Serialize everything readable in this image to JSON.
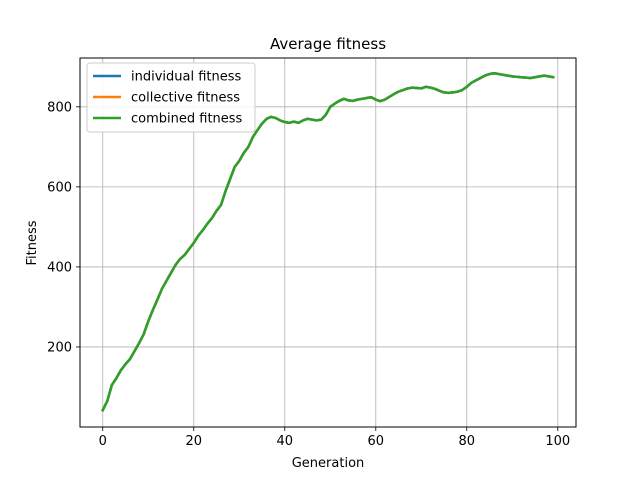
{
  "chart_data": {
    "type": "line",
    "title": "Average fitness",
    "xlabel": "Generation",
    "ylabel": "Fitness",
    "xlim": [
      -5,
      104
    ],
    "ylim": [
      0,
      922
    ],
    "xticks": [
      0,
      20,
      40,
      60,
      80,
      100
    ],
    "yticks": [
      200,
      400,
      600,
      800
    ],
    "grid": true,
    "legend_position": "top-left",
    "x": [
      0,
      1,
      2,
      3,
      4,
      5,
      6,
      7,
      8,
      9,
      10,
      11,
      12,
      13,
      14,
      15,
      16,
      17,
      18,
      19,
      20,
      21,
      22,
      23,
      24,
      25,
      26,
      27,
      28,
      29,
      30,
      31,
      32,
      33,
      34,
      35,
      36,
      37,
      38,
      39,
      40,
      41,
      42,
      43,
      44,
      45,
      46,
      47,
      48,
      49,
      50,
      51,
      52,
      53,
      54,
      55,
      56,
      57,
      58,
      59,
      60,
      61,
      62,
      63,
      64,
      65,
      66,
      67,
      68,
      69,
      70,
      71,
      72,
      73,
      74,
      75,
      76,
      77,
      78,
      79,
      80,
      81,
      82,
      83,
      84,
      85,
      86,
      87,
      88,
      89,
      90,
      91,
      92,
      93,
      94,
      95,
      96,
      97,
      98,
      99
    ],
    "series": [
      {
        "name": "individual fitness",
        "color": "#1f77b4",
        "values": [
          42,
          65,
          105,
          122,
          142,
          157,
          170,
          190,
          210,
          232,
          264,
          292,
          318,
          345,
          365,
          385,
          405,
          420,
          430,
          445,
          460,
          478,
          492,
          508,
          522,
          540,
          555,
          590,
          620,
          650,
          665,
          685,
          700,
          725,
          742,
          758,
          770,
          775,
          772,
          766,
          762,
          760,
          763,
          760,
          766,
          770,
          768,
          766,
          768,
          780,
          800,
          808,
          815,
          820,
          816,
          815,
          818,
          820,
          822,
          824,
          818,
          814,
          818,
          825,
          832,
          838,
          842,
          846,
          848,
          847,
          846,
          850,
          848,
          845,
          840,
          836,
          835,
          836,
          838,
          842,
          850,
          860,
          866,
          872,
          878,
          882,
          884,
          882,
          880,
          878,
          876,
          875,
          874,
          873,
          872,
          874,
          876,
          878,
          876,
          874
        ]
      },
      {
        "name": "collective fitness",
        "color": "#ff7f0e",
        "values": [
          42,
          65,
          105,
          122,
          142,
          157,
          170,
          190,
          210,
          232,
          264,
          292,
          318,
          345,
          365,
          385,
          405,
          420,
          430,
          445,
          460,
          478,
          492,
          508,
          522,
          540,
          555,
          590,
          620,
          650,
          665,
          685,
          700,
          725,
          742,
          758,
          770,
          775,
          772,
          766,
          762,
          760,
          763,
          760,
          766,
          770,
          768,
          766,
          768,
          780,
          800,
          808,
          815,
          820,
          816,
          815,
          818,
          820,
          822,
          824,
          818,
          814,
          818,
          825,
          832,
          838,
          842,
          846,
          848,
          847,
          846,
          850,
          848,
          845,
          840,
          836,
          835,
          836,
          838,
          842,
          850,
          860,
          866,
          872,
          878,
          882,
          884,
          882,
          880,
          878,
          876,
          875,
          874,
          873,
          872,
          874,
          876,
          878,
          876,
          874
        ]
      },
      {
        "name": "combined fitness",
        "color": "#2ca02c",
        "values": [
          42,
          65,
          105,
          122,
          142,
          157,
          170,
          190,
          210,
          232,
          264,
          292,
          318,
          345,
          365,
          385,
          405,
          420,
          430,
          445,
          460,
          478,
          492,
          508,
          522,
          540,
          555,
          590,
          620,
          650,
          665,
          685,
          700,
          725,
          742,
          758,
          770,
          775,
          772,
          766,
          762,
          760,
          763,
          760,
          766,
          770,
          768,
          766,
          768,
          780,
          800,
          808,
          815,
          820,
          816,
          815,
          818,
          820,
          822,
          824,
          818,
          814,
          818,
          825,
          832,
          838,
          842,
          846,
          848,
          847,
          846,
          850,
          848,
          845,
          840,
          836,
          835,
          836,
          838,
          842,
          850,
          860,
          866,
          872,
          878,
          882,
          884,
          882,
          880,
          878,
          876,
          875,
          874,
          873,
          872,
          874,
          876,
          878,
          876,
          874
        ]
      }
    ]
  }
}
